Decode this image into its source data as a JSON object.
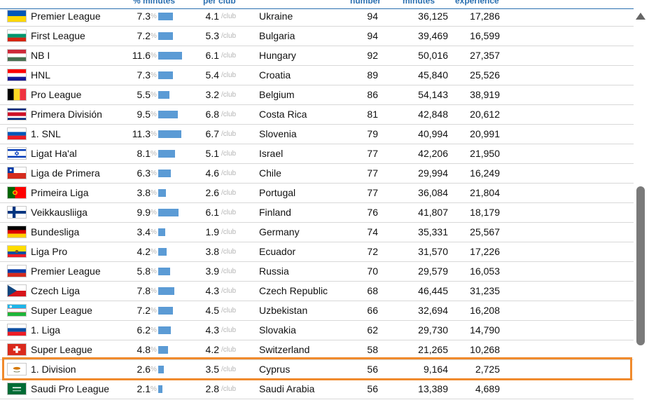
{
  "header": {
    "col_minutes": "% minutes",
    "col_perclub": "per club",
    "col_number": "number",
    "col_minutes_total": "minutes",
    "col_experience": "experience"
  },
  "unit_pct": "%",
  "unit_club": "/club",
  "rows": [
    {
      "league": "Premier League",
      "mins": "7.3",
      "mins_value": 7.3,
      "club": "4.1",
      "country": "Ukraine",
      "number": "94",
      "minutes": "36,125",
      "experience": "17,286",
      "flag": "ukraine"
    },
    {
      "league": "First League",
      "mins": "7.2",
      "mins_value": 7.2,
      "club": "5.3",
      "country": "Bulgaria",
      "number": "94",
      "minutes": "39,469",
      "experience": "16,599",
      "flag": "bulgaria"
    },
    {
      "league": "NB I",
      "mins": "11.6",
      "mins_value": 11.6,
      "club": "6.1",
      "country": "Hungary",
      "number": "92",
      "minutes": "50,016",
      "experience": "27,357",
      "flag": "hungary"
    },
    {
      "league": "HNL",
      "mins": "7.3",
      "mins_value": 7.3,
      "club": "5.4",
      "country": "Croatia",
      "number": "89",
      "minutes": "45,840",
      "experience": "25,526",
      "flag": "croatia"
    },
    {
      "league": "Pro League",
      "mins": "5.5",
      "mins_value": 5.5,
      "club": "3.2",
      "country": "Belgium",
      "number": "86",
      "minutes": "54,143",
      "experience": "38,919",
      "flag": "belgium"
    },
    {
      "league": "Primera División",
      "mins": "9.5",
      "mins_value": 9.5,
      "club": "6.8",
      "country": "Costa Rica",
      "number": "81",
      "minutes": "42,848",
      "experience": "20,612",
      "flag": "costa-rica"
    },
    {
      "league": "1. SNL",
      "mins": "11.3",
      "mins_value": 11.3,
      "club": "6.7",
      "country": "Slovenia",
      "number": "79",
      "minutes": "40,994",
      "experience": "20,991",
      "flag": "slovenia"
    },
    {
      "league": "Ligat Ha'al",
      "mins": "8.1",
      "mins_value": 8.1,
      "club": "5.1",
      "country": "Israel",
      "number": "77",
      "minutes": "42,206",
      "experience": "21,950",
      "flag": "israel"
    },
    {
      "league": "Liga de Primera",
      "mins": "6.3",
      "mins_value": 6.3,
      "club": "4.6",
      "country": "Chile",
      "number": "77",
      "minutes": "29,994",
      "experience": "16,249",
      "flag": "chile"
    },
    {
      "league": "Primeira Liga",
      "mins": "3.8",
      "mins_value": 3.8,
      "club": "2.6",
      "country": "Portugal",
      "number": "77",
      "minutes": "36,084",
      "experience": "21,804",
      "flag": "portugal"
    },
    {
      "league": "Veikkausliiga",
      "mins": "9.9",
      "mins_value": 9.9,
      "club": "6.1",
      "country": "Finland",
      "number": "76",
      "minutes": "41,807",
      "experience": "18,179",
      "flag": "finland"
    },
    {
      "league": "Bundesliga",
      "mins": "3.4",
      "mins_value": 3.4,
      "club": "1.9",
      "country": "Germany",
      "number": "74",
      "minutes": "35,331",
      "experience": "25,567",
      "flag": "germany"
    },
    {
      "league": "Liga Pro",
      "mins": "4.2",
      "mins_value": 4.2,
      "club": "3.8",
      "country": "Ecuador",
      "number": "72",
      "minutes": "31,570",
      "experience": "17,226",
      "flag": "ecuador"
    },
    {
      "league": "Premier League",
      "mins": "5.8",
      "mins_value": 5.8,
      "club": "3.9",
      "country": "Russia",
      "number": "70",
      "minutes": "29,579",
      "experience": "16,053",
      "flag": "russia"
    },
    {
      "league": "Czech Liga",
      "mins": "7.8",
      "mins_value": 7.8,
      "club": "4.3",
      "country": "Czech Republic",
      "number": "68",
      "minutes": "46,445",
      "experience": "31,235",
      "flag": "czech"
    },
    {
      "league": "Super League",
      "mins": "7.2",
      "mins_value": 7.2,
      "club": "4.5",
      "country": "Uzbekistan",
      "number": "66",
      "minutes": "32,694",
      "experience": "16,208",
      "flag": "uzbekistan"
    },
    {
      "league": "1. Liga",
      "mins": "6.2",
      "mins_value": 6.2,
      "club": "4.3",
      "country": "Slovakia",
      "number": "62",
      "minutes": "29,730",
      "experience": "14,790",
      "flag": "slovakia"
    },
    {
      "league": "Super League",
      "mins": "4.8",
      "mins_value": 4.8,
      "club": "4.2",
      "country": "Switzerland",
      "number": "58",
      "minutes": "21,265",
      "experience": "10,268",
      "flag": "switzerland"
    },
    {
      "league": "1. Division",
      "mins": "2.6",
      "mins_value": 2.6,
      "club": "3.5",
      "country": "Cyprus",
      "number": "56",
      "minutes": "9,164",
      "experience": "2,725",
      "flag": "cyprus"
    },
    {
      "league": "Saudi Pro League",
      "mins": "2.1",
      "mins_value": 2.1,
      "club": "2.8",
      "country": "Saudi Arabia",
      "number": "56",
      "minutes": "13,389",
      "experience": "4,689",
      "flag": "saudi-arabia"
    }
  ],
  "highlighted_league": "1. Division",
  "bar_color": "#5b9bd5",
  "highlight_color": "#f08a2c"
}
